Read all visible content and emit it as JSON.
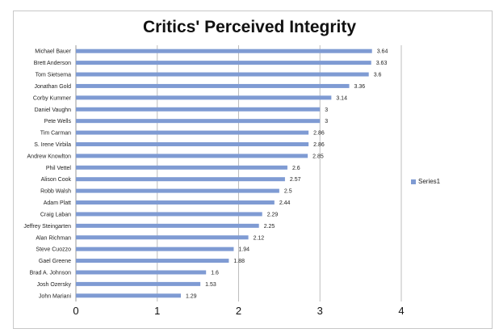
{
  "chart_data": {
    "type": "bar",
    "orientation": "horizontal",
    "title": "Critics' Perceived Integrity",
    "xlabel": "",
    "ylabel": "",
    "xlim": [
      0,
      4
    ],
    "xticks": [
      "0",
      "1",
      "2",
      "3",
      "4"
    ],
    "grid": "vertical major gridlines",
    "legend": "right",
    "bar_color": "#7f9bd3",
    "grid_color": "#bdbdbd",
    "categories": [
      "Michael Bauer",
      "Brett Anderson",
      "Tom Sietsema",
      "Jonathan Gold",
      "Corby Kummer",
      "Daniel Vaughn",
      "Pete Wells",
      "Tim Carman",
      "S. Irene Virbila",
      "Andrew Knowlton",
      "Phil Vettel",
      "Alison Cook",
      "Robb Walsh",
      "Adam Platt",
      "Craig Laban",
      "Jeffrey Steingarten",
      "Alan Richman",
      "Steve Cuozzo",
      "Gael Greene",
      "Brad A. Johnson",
      "Josh Ozersky",
      "John Mariani"
    ],
    "series": [
      {
        "name": "Series1",
        "values": [
          3.64,
          3.63,
          3.6,
          3.36,
          3.14,
          3,
          3,
          2.86,
          2.86,
          2.85,
          2.6,
          2.57,
          2.5,
          2.44,
          2.29,
          2.25,
          2.12,
          1.94,
          1.88,
          1.6,
          1.53,
          1.29
        ]
      }
    ]
  }
}
